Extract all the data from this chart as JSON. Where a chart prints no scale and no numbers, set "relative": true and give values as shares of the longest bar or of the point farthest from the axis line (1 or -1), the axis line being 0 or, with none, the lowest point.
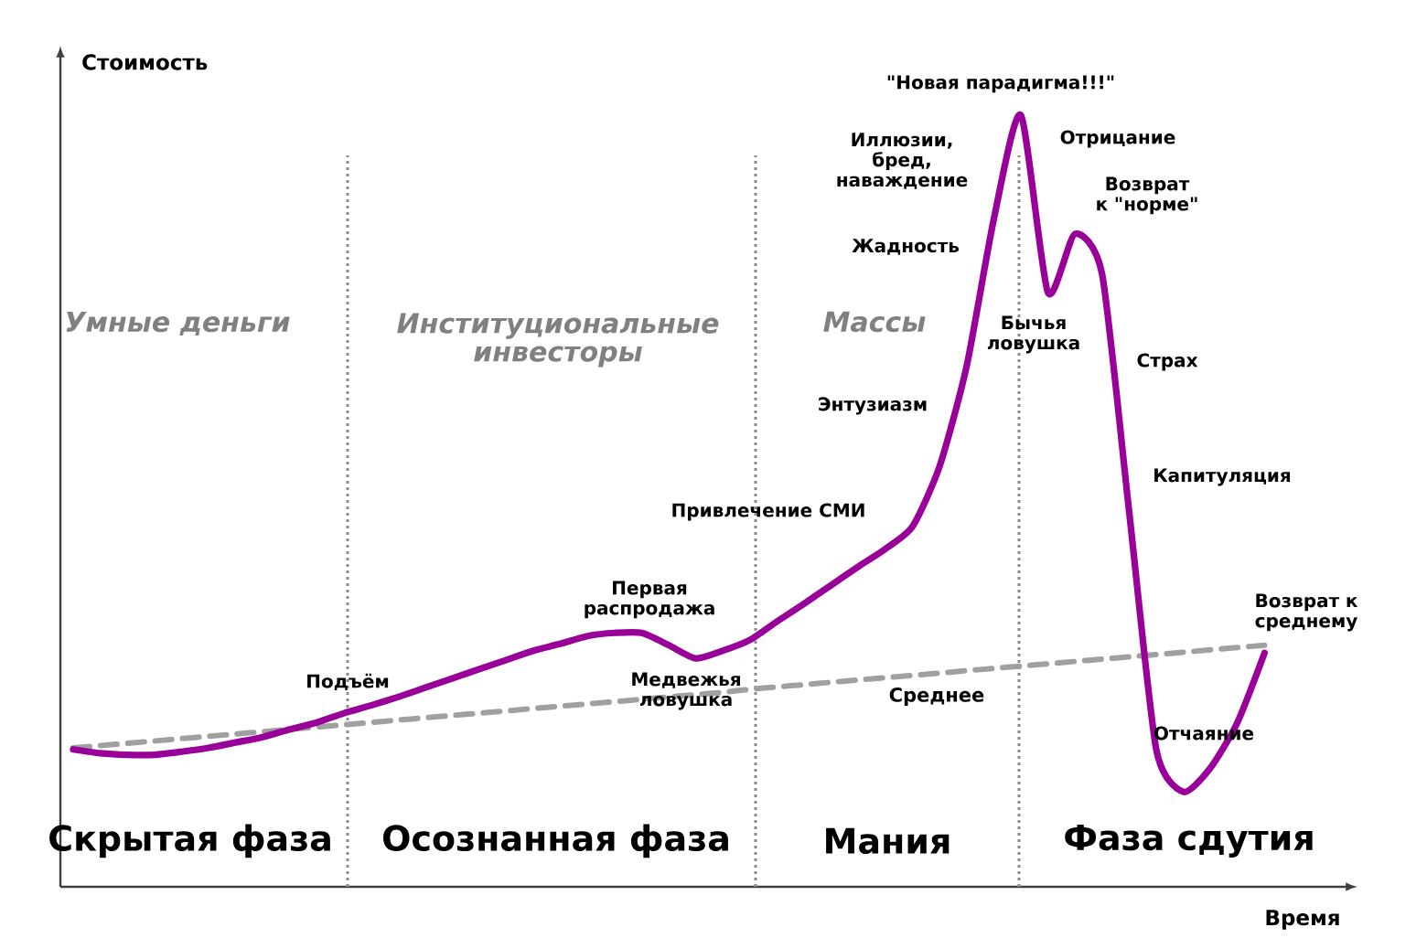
{
  "chart_data": {
    "type": "line",
    "relative": true,
    "ylabel": "Стоимость",
    "xlabel": "Время",
    "marker": "none",
    "categories": [
      null,
      null,
      null,
      null,
      null,
      null,
      null,
      null,
      null,
      null,
      null,
      null,
      null,
      null,
      null,
      null,
      null,
      null,
      null,
      null,
      null,
      null,
      null,
      null,
      null,
      null,
      null,
      null,
      null,
      null,
      null,
      null,
      null,
      null,
      null,
      null,
      null,
      null,
      null,
      null,
      null,
      null,
      null,
      null,
      null
    ],
    "series": [
      {
        "color": "#990099",
        "line_style": "solid",
        "values": [
          0.178,
          0.173,
          0.171,
          0.171,
          0.175,
          0.18,
          0.187,
          0.194,
          0.204,
          0.213,
          0.225,
          0.235,
          0.246,
          0.258,
          0.27,
          0.282,
          0.294,
          0.306,
          0.315,
          0.325,
          0.329,
          0.329,
          0.313,
          0.296,
          0.306,
          0.32,
          0.344,
          0.367,
          0.391,
          0.415,
          0.438,
          0.467,
          0.545,
          0.675,
          0.865,
          1,
          0.77,
          0.846,
          0.794,
          0.486,
          0.178,
          0.123,
          0.154,
          0.213,
          0.303
        ]
      },
      {
        "name": "Среднее",
        "color": "#a0a0a0",
        "line_style": "dashed",
        "values": [
          0.18,
          0.183,
          0.186,
          0.189,
          0.192,
          0.195,
          0.198,
          0.201,
          0.204,
          0.207,
          0.21,
          0.213,
          0.216,
          0.219,
          0.222,
          0.225,
          0.228,
          0.231,
          0.234,
          0.237,
          0.24,
          0.243,
          0.246,
          0.249,
          0.252,
          0.256,
          0.259,
          0.262,
          0.265,
          0.268,
          0.271,
          0.274,
          0.277,
          0.28,
          0.283,
          0.286,
          0.289,
          0.292,
          0.295,
          0.298,
          0.301,
          0.304,
          0.307,
          0.31,
          0.313
        ]
      }
    ],
    "annotations": [
      "Умные деньги",
      "Институциональные инвесторы",
      "Массы",
      "Скрытая фаза",
      "Осознанная фаза",
      "Мания",
      "Фаза сдутия",
      "Подъём",
      "Первая распродажа",
      "Медвежья ловушка",
      "Привлечение СМИ",
      "Энтузиазм",
      "Жадность",
      "Иллюзии, бред, наваждение",
      "\"Новая парадигма!!!\"",
      "Отрицание",
      "Бычья ловушка",
      "Возврат к \"норме\"",
      "Страх",
      "Капитуляция",
      "Возврат к среднему",
      "Отчаяние"
    ]
  }
}
